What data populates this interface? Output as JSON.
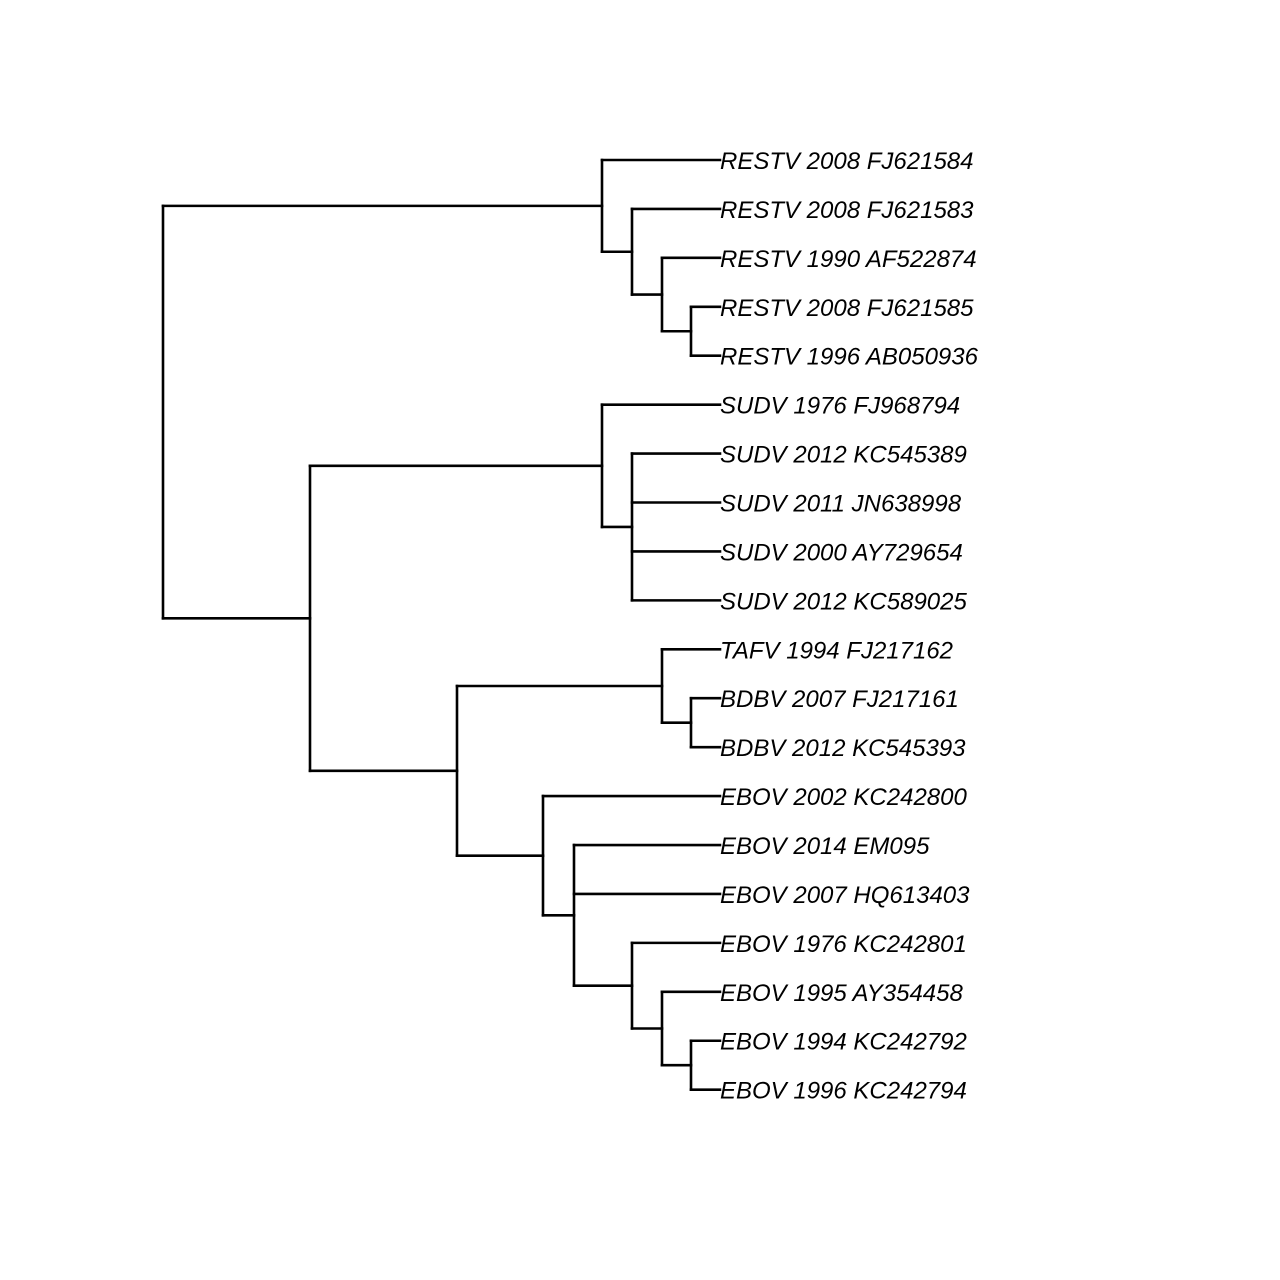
{
  "tree": {
    "tips": [
      "RESTV 2008 FJ621584",
      "RESTV 2008 FJ621583",
      "RESTV 1990 AF522874",
      "RESTV 2008 FJ621585",
      "RESTV 1996 AB050936",
      "SUDV 1976 FJ968794",
      "SUDV 2012 KC545389",
      "SUDV 2011 JN638998",
      "SUDV 2000 AY729654",
      "SUDV 2012 KC589025",
      "TAFV 1994 FJ217162",
      "BDBV 2007 FJ217161",
      "BDBV 2012 KC545393",
      "EBOV 2002 KC242800",
      "EBOV 2014 EM095",
      "EBOV 2007 HQ613403",
      "EBOV 1976 KC242801",
      "EBOV 1995 AY354458",
      "EBOV 1994 KC242792",
      "EBOV 1996 KC242794"
    ],
    "newick": "((0,(1,(2,(3,4)))),((5,(6,7,8,9)),((10,(11,12)),(13,(14,15,(16,(17,(18,19))))))));",
    "line_color": "#000000"
  }
}
